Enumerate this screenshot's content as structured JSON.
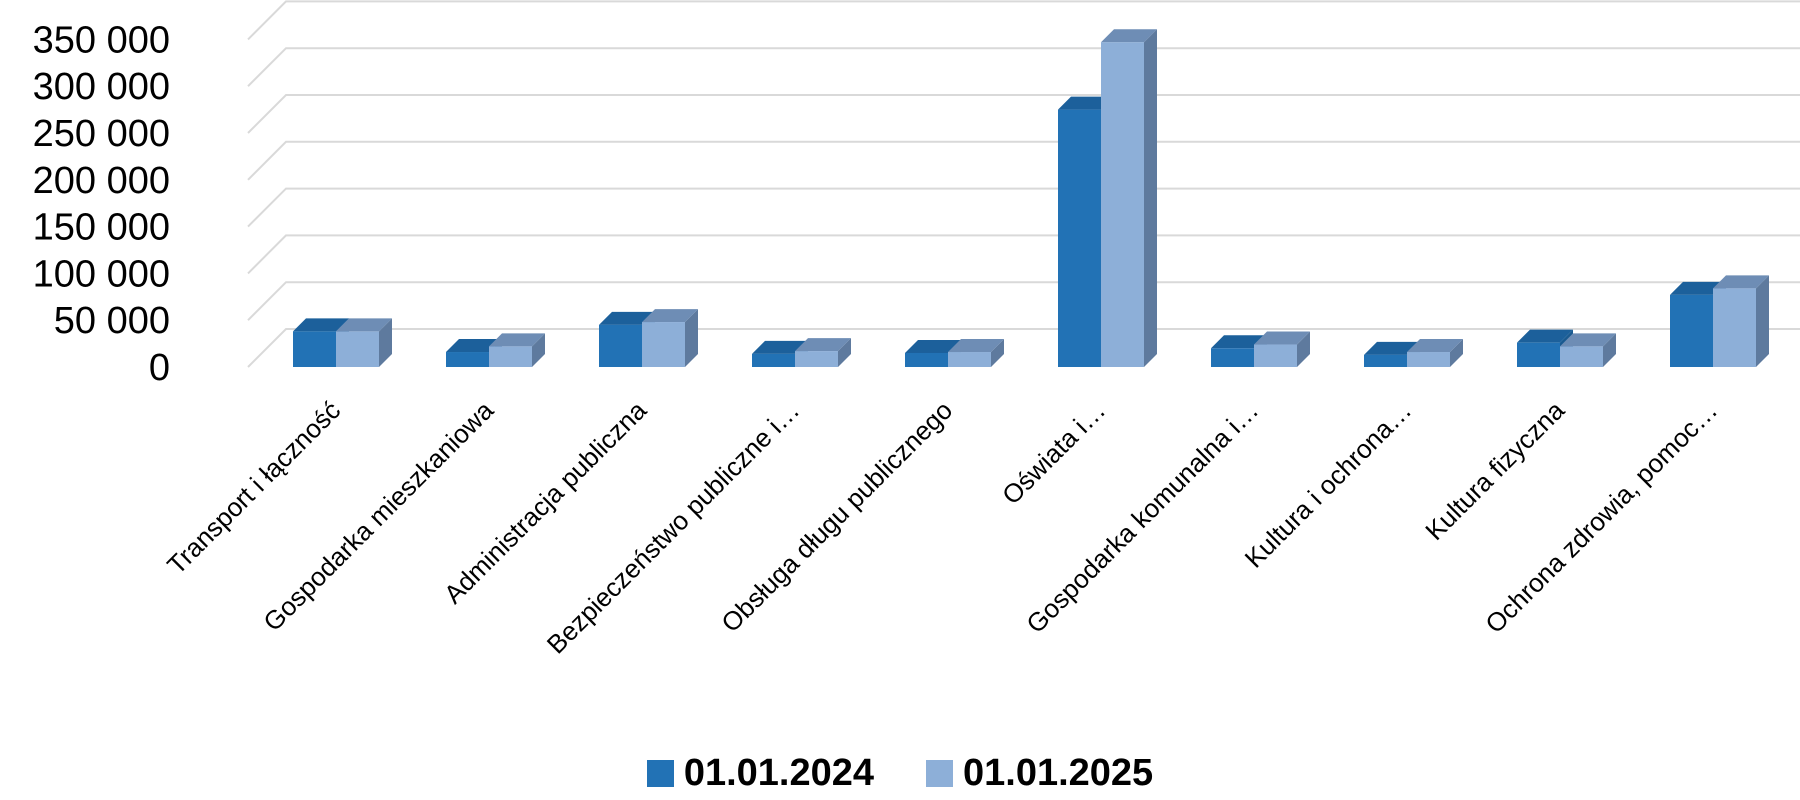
{
  "chart_data": {
    "type": "bar",
    "style": "3d-clustered",
    "categories": [
      "Transport i łączność",
      "Gospodarka mieszkaniowa",
      "Administracja publiczna",
      "Bezpieczeństwo publiczne i…",
      "Obsługa długu publicznego",
      "Oświata i…",
      "Gospodarka komunalna i…",
      "Kultura i ochrona…",
      "Kultura fizyczna",
      "Ochrona zdrowia, pomoc…"
    ],
    "series": [
      {
        "name": "01.01.2024",
        "color": "#2272B5",
        "values": [
          38000,
          16000,
          45000,
          14000,
          15000,
          275000,
          20000,
          13000,
          26000,
          77000
        ]
      },
      {
        "name": "01.01.2025",
        "color": "#8DAFD8",
        "values": [
          38000,
          22000,
          48000,
          17000,
          16000,
          347000,
          24000,
          16000,
          22000,
          84000
        ]
      }
    ],
    "y_ticks": [
      "0",
      "50 000",
      "100 000",
      "150 000",
      "200 000",
      "250 000",
      "300 000",
      "350 000"
    ],
    "ylim": [
      0,
      350000
    ],
    "grid": true,
    "legend_position": "bottom"
  }
}
